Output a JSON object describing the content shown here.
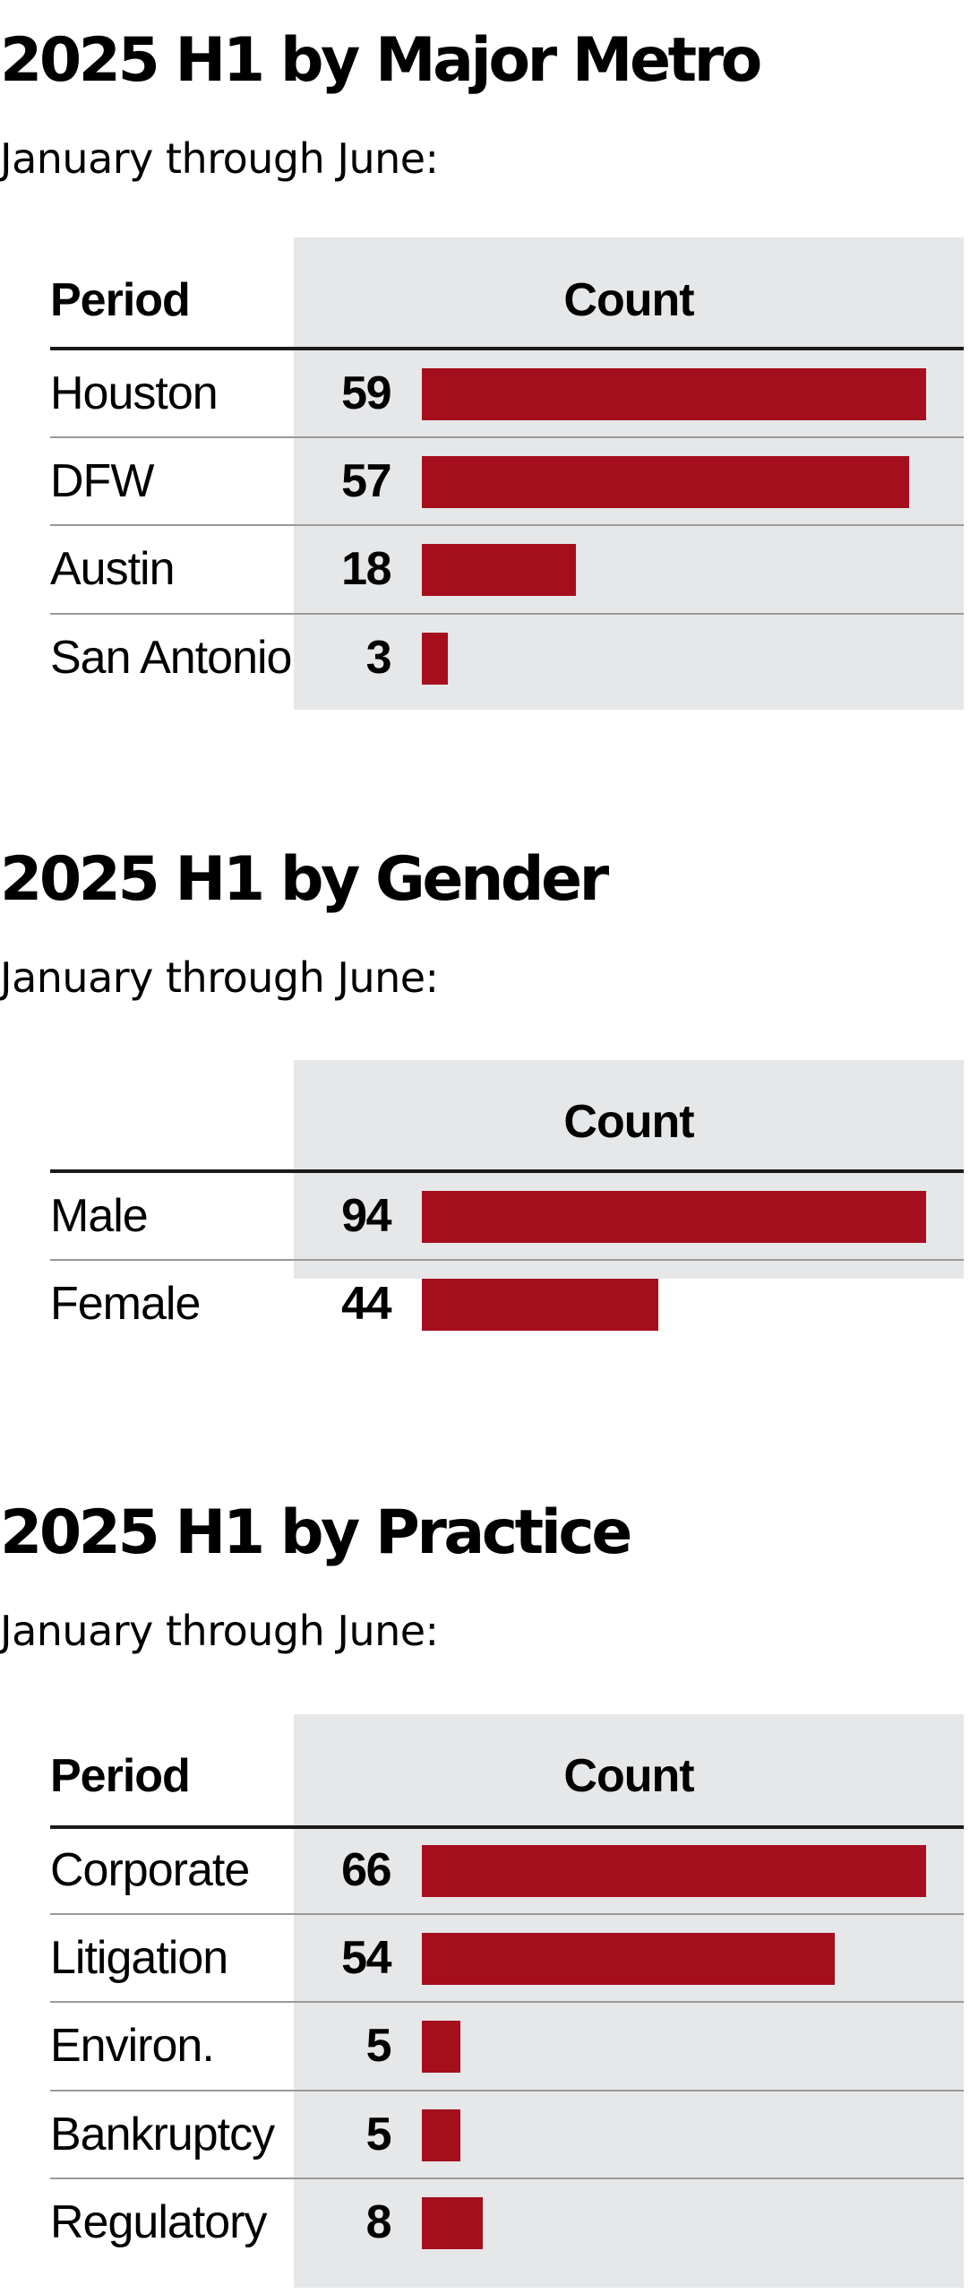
{
  "colors": {
    "bar": "#a50e1d",
    "panel": "#e6e7e9",
    "text": "#000000"
  },
  "chart_data": [
    {
      "type": "bar",
      "orientation": "horizontal",
      "title": "2025 H1 by Major Metro",
      "subtitle": "January through June:",
      "category_header": "Period",
      "value_header": "Count",
      "categories": [
        "Houston",
        "DFW",
        "Austin",
        "San Antonio"
      ],
      "values": [
        59,
        57,
        18,
        3
      ],
      "xlim": [
        0,
        59
      ]
    },
    {
      "type": "bar",
      "orientation": "horizontal",
      "title": "2025 H1 by Gender",
      "subtitle": "January through June:",
      "category_header": "",
      "value_header": "Count",
      "categories": [
        "Male",
        "Female"
      ],
      "values": [
        94,
        44
      ],
      "xlim": [
        0,
        94
      ]
    },
    {
      "type": "bar",
      "orientation": "horizontal",
      "title": "2025 H1 by Practice",
      "subtitle": "January through June:",
      "category_header": "Period",
      "value_header": "Count",
      "categories": [
        "Corporate",
        "Litigation",
        "Environ.",
        "Bankruptcy",
        "Regulatory"
      ],
      "values": [
        66,
        54,
        5,
        5,
        8
      ],
      "xlim": [
        0,
        66
      ]
    }
  ]
}
